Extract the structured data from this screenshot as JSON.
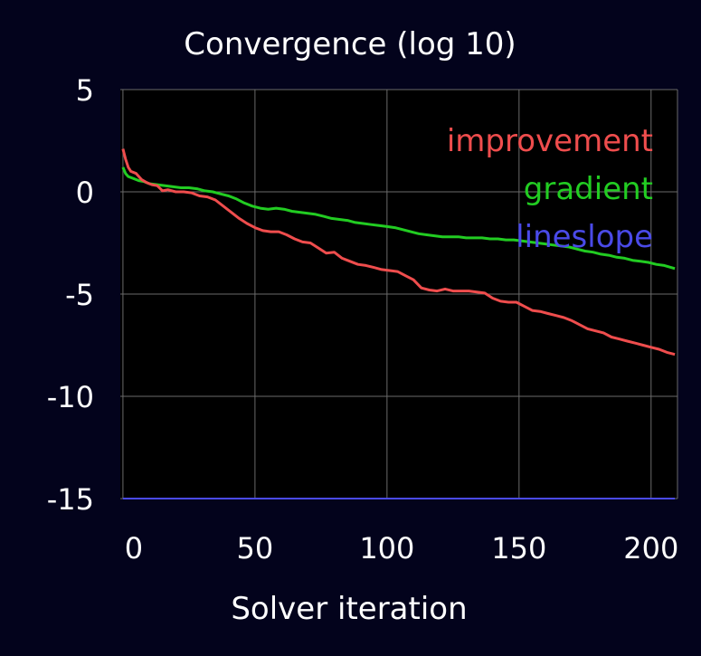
{
  "colors": {
    "background": "#03031c",
    "plot_background": "#000000",
    "grid": "#6a6a6a",
    "text": "#ffffff",
    "improvement": "#ef4d4d",
    "gradient": "#22cc22",
    "lineslope": "#4a4ae8"
  },
  "chart_data": {
    "type": "line",
    "title": "Convergence (log 10)",
    "xlabel": "Solver iteration",
    "ylabel": "",
    "xlim": [
      -1,
      210
    ],
    "ylim": [
      -15,
      5
    ],
    "xticks": [
      0,
      50,
      100,
      150,
      200
    ],
    "yticks": [
      5,
      0,
      -5,
      -10,
      -15
    ],
    "xtick_labels": [
      "0",
      "50",
      "100",
      "150",
      "200"
    ],
    "ytick_labels": [
      "5",
      "0",
      "-5",
      "-10",
      "-15"
    ],
    "grid": true,
    "legend_position": "top-right",
    "series": [
      {
        "name": "improvement",
        "color": "#ef4d4d",
        "x": [
          0,
          1,
          2,
          3,
          5,
          7,
          9,
          11,
          13,
          15,
          17,
          20,
          23,
          26,
          29,
          32,
          35,
          38,
          41,
          44,
          47,
          50,
          53,
          56,
          59,
          62,
          65,
          68,
          71,
          74,
          77,
          80,
          83,
          86,
          89,
          92,
          95,
          98,
          101,
          104,
          107,
          110,
          113,
          116,
          119,
          122,
          125,
          128,
          131,
          134,
          137,
          140,
          143,
          146,
          149,
          152,
          155,
          158,
          161,
          164,
          167,
          170,
          173,
          176,
          179,
          182,
          185,
          188,
          191,
          194,
          197,
          200,
          203,
          206,
          209
        ],
        "values": [
          2.1,
          1.6,
          1.2,
          1.0,
          0.9,
          0.6,
          0.45,
          0.35,
          0.3,
          0.05,
          0.1,
          0.0,
          0.0,
          -0.05,
          -0.2,
          -0.25,
          -0.4,
          -0.7,
          -1.0,
          -1.3,
          -1.55,
          -1.75,
          -1.9,
          -1.95,
          -1.95,
          -2.1,
          -2.3,
          -2.45,
          -2.5,
          -2.75,
          -3.0,
          -2.95,
          -3.25,
          -3.4,
          -3.55,
          -3.6,
          -3.7,
          -3.8,
          -3.85,
          -3.9,
          -4.1,
          -4.3,
          -4.7,
          -4.8,
          -4.85,
          -4.75,
          -4.85,
          -4.85,
          -4.85,
          -4.9,
          -4.95,
          -5.2,
          -5.35,
          -5.4,
          -5.4,
          -5.6,
          -5.8,
          -5.85,
          -5.95,
          -6.05,
          -6.15,
          -6.3,
          -6.5,
          -6.7,
          -6.8,
          -6.9,
          -7.1,
          -7.2,
          -7.3,
          -7.4,
          -7.5,
          -7.6,
          -7.7,
          -7.85,
          -7.95
        ]
      },
      {
        "name": "gradient",
        "color": "#22cc22",
        "x": [
          0,
          1,
          2,
          4,
          6,
          8,
          10,
          13,
          16,
          19,
          22,
          25,
          28,
          31,
          34,
          37,
          40,
          43,
          46,
          49,
          52,
          55,
          58,
          61,
          64,
          67,
          70,
          73,
          76,
          79,
          82,
          85,
          88,
          91,
          94,
          97,
          100,
          103,
          106,
          109,
          112,
          115,
          118,
          121,
          124,
          127,
          130,
          133,
          136,
          139,
          142,
          145,
          148,
          151,
          154,
          157,
          160,
          163,
          166,
          169,
          172,
          175,
          178,
          181,
          184,
          187,
          190,
          193,
          196,
          199,
          202,
          205,
          209
        ],
        "values": [
          1.2,
          0.9,
          0.75,
          0.65,
          0.55,
          0.5,
          0.4,
          0.35,
          0.3,
          0.25,
          0.2,
          0.2,
          0.15,
          0.05,
          0.0,
          -0.1,
          -0.2,
          -0.35,
          -0.55,
          -0.7,
          -0.8,
          -0.85,
          -0.8,
          -0.85,
          -0.95,
          -1.0,
          -1.05,
          -1.1,
          -1.2,
          -1.3,
          -1.35,
          -1.4,
          -1.5,
          -1.55,
          -1.6,
          -1.65,
          -1.7,
          -1.75,
          -1.85,
          -1.95,
          -2.05,
          -2.1,
          -2.15,
          -2.2,
          -2.2,
          -2.2,
          -2.25,
          -2.25,
          -2.25,
          -2.3,
          -2.3,
          -2.35,
          -2.35,
          -2.4,
          -2.45,
          -2.5,
          -2.55,
          -2.6,
          -2.65,
          -2.7,
          -2.8,
          -2.9,
          -2.95,
          -3.05,
          -3.1,
          -3.2,
          -3.25,
          -3.35,
          -3.4,
          -3.45,
          -3.55,
          -3.6,
          -3.75
        ]
      },
      {
        "name": "lineslope",
        "color": "#4a4ae8",
        "x": [
          0,
          209
        ],
        "values": [
          -15,
          -15
        ]
      }
    ]
  }
}
